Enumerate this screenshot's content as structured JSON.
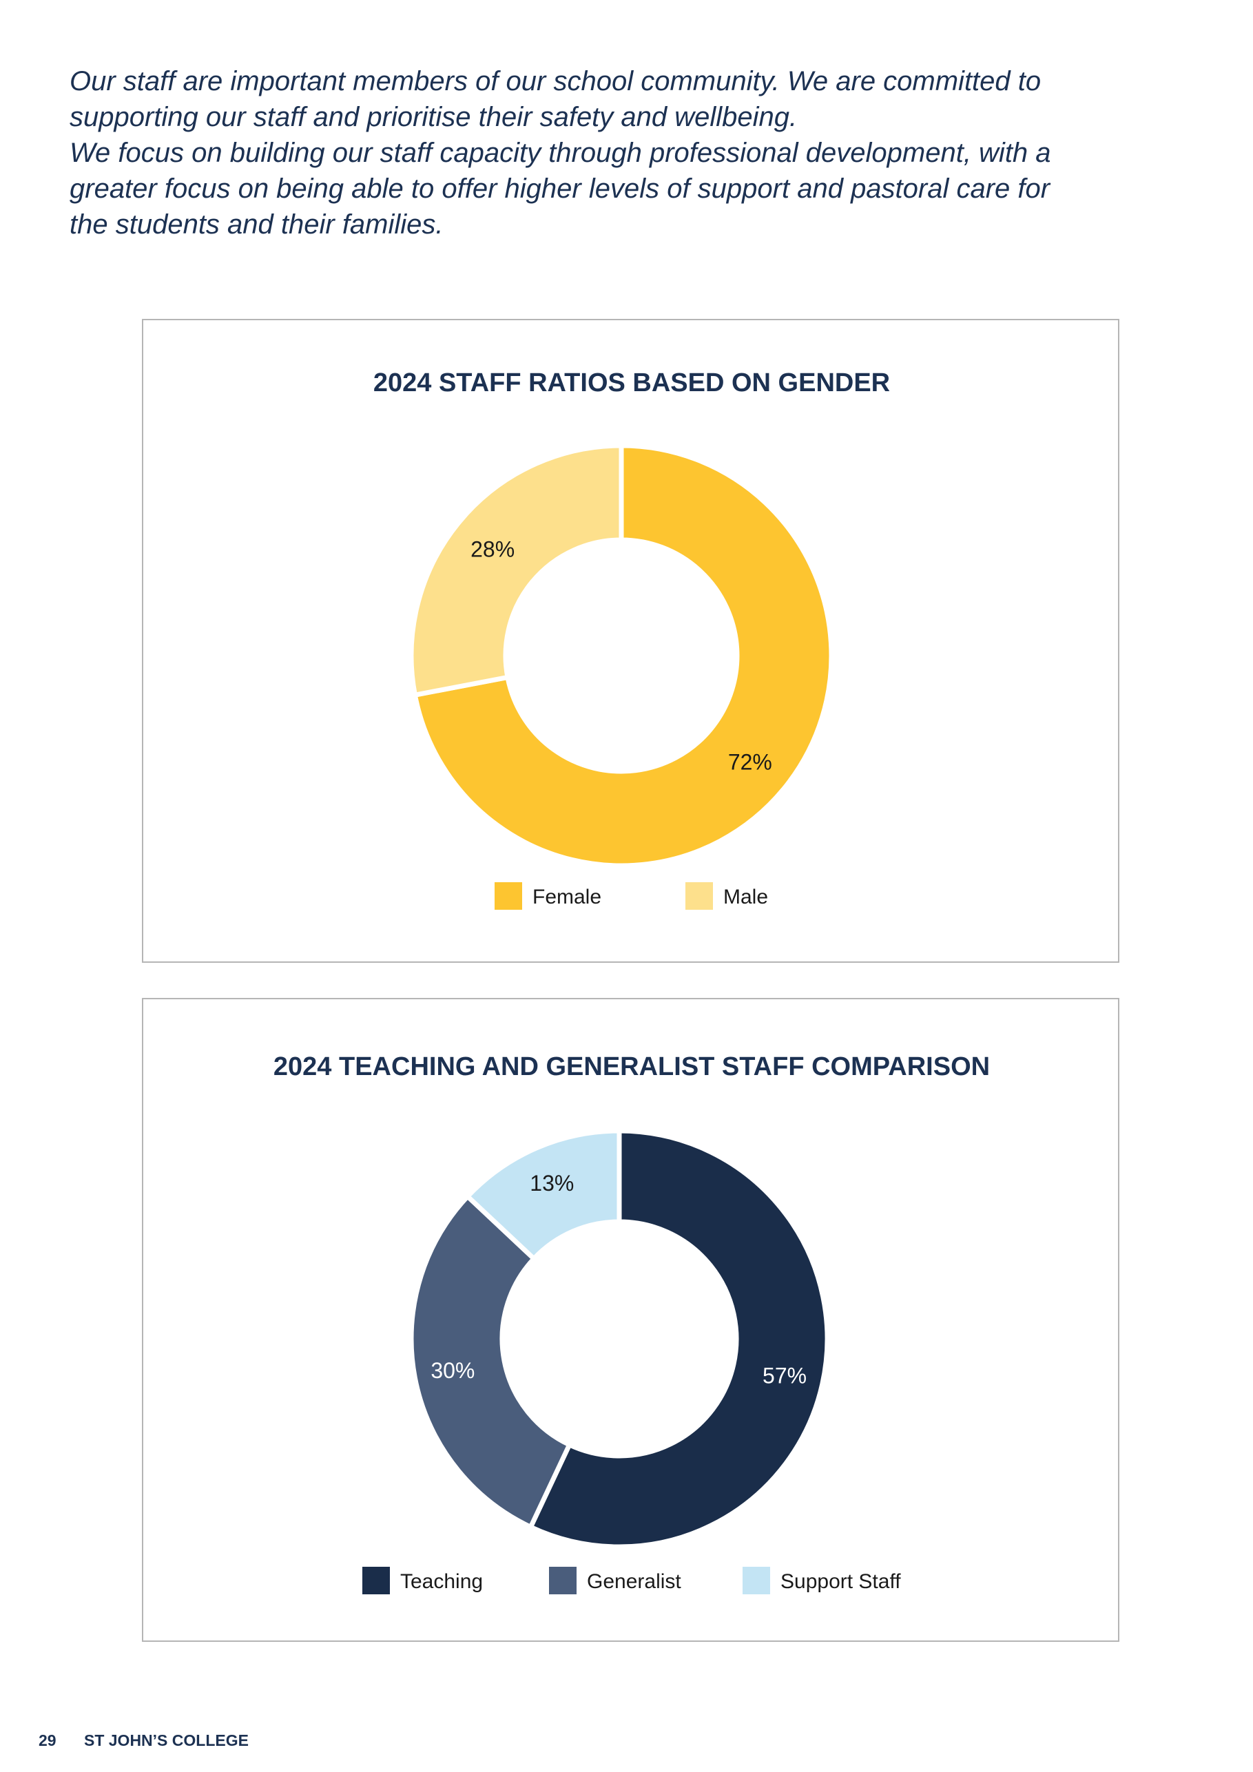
{
  "intro": {
    "lines": [
      "Our staff are important members of our school community. We are committed to",
      "supporting our staff and prioritise their safety and wellbeing.",
      "We focus on building our staff capacity through professional development, with a",
      "greater focus on being able to offer higher levels of support and pastoral care for",
      "the students and their families."
    ]
  },
  "chart_data": [
    {
      "type": "pie",
      "donut": true,
      "title": "2024 STAFF RATIOS BASED ON GENDER",
      "series": [
        {
          "name": "Female",
          "value": 72,
          "label": "72%",
          "color": "#fdc530",
          "label_color": "#1a1a1a"
        },
        {
          "name": "Male",
          "value": 28,
          "label": "28%",
          "color": "#fde08c",
          "label_color": "#1a1a1a"
        }
      ],
      "legend_position": "bottom"
    },
    {
      "type": "pie",
      "donut": true,
      "title": "2024 TEACHING AND GENERALIST STAFF COMPARISON",
      "series": [
        {
          "name": "Teaching",
          "value": 57,
          "label": "57%",
          "color": "#1a2d4a",
          "label_color": "#ffffff"
        },
        {
          "name": "Generalist",
          "value": 30,
          "label": "30%",
          "color": "#4a5d7c",
          "label_color": "#ffffff"
        },
        {
          "name": "Support Staff",
          "value": 13,
          "label": "13%",
          "color": "#c3e4f4",
          "label_color": "#1a1a1a"
        }
      ],
      "legend_position": "bottom"
    }
  ],
  "footer": {
    "page_number": "29",
    "college_name": "ST JOHN’S COLLEGE"
  }
}
